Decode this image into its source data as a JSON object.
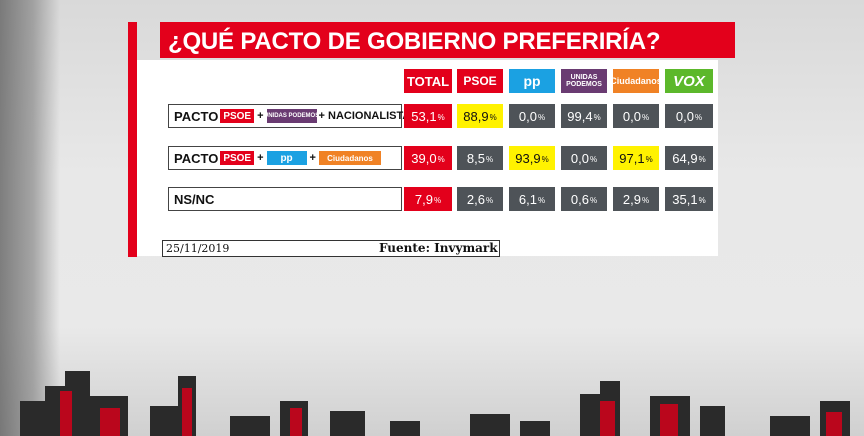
{
  "title": "¿QUÉ PACTO DE GOBIERNO PREFERIRÍA?",
  "headers": [
    "TOTAL",
    "PSOE",
    "pp",
    "UNIDAS PODEMOS",
    "Ciudadanos",
    "VOX"
  ],
  "rows": [
    {
      "label_parts": [
        "PACTO",
        "PSOE",
        "+",
        "UNIDAS PODEMOS",
        "+ NACIONALISTAS"
      ],
      "values": [
        "53,1",
        "88,9",
        "0,0",
        "99,4",
        "0,0",
        "0,0"
      ],
      "highlight": [
        false,
        true,
        false,
        false,
        false,
        false
      ]
    },
    {
      "label_parts": [
        "PACTO",
        "PSOE",
        "+",
        "pp",
        "+",
        "Ciudadanos"
      ],
      "values": [
        "39,0",
        "8,5",
        "93,9",
        "0,0",
        "97,1",
        "64,9"
      ],
      "highlight": [
        false,
        false,
        true,
        false,
        true,
        false
      ]
    },
    {
      "label_parts": [
        "NS/NC"
      ],
      "values": [
        "7,9",
        "2,6",
        "6,1",
        "0,6",
        "2,9",
        "35,1"
      ],
      "highlight": [
        false,
        false,
        false,
        false,
        false,
        false
      ]
    }
  ],
  "percent_sign": "%",
  "date": "25/11/2019",
  "source": "Fuente: Invymark",
  "colors": {
    "red": "#e3001b",
    "pp": "#1ba1e2",
    "podemos": "#6a3b72",
    "ciudadanos": "#f08225",
    "vox": "#5cb82b",
    "gray_cell": "#4e5358",
    "highlight": "#fff200"
  },
  "chart_data": {
    "type": "table",
    "title": "¿QUÉ PACTO DE GOBIERNO PREFERIRÍA?",
    "columns": [
      "TOTAL",
      "PSOE",
      "pp",
      "UNIDAS PODEMOS",
      "Ciudadanos",
      "VOX"
    ],
    "rows": [
      "PACTO PSOE + UNIDAS PODEMOS + NACIONALISTAS",
      "PACTO PSOE + pp + Ciudadanos",
      "NS/NC"
    ],
    "values": [
      [
        53.1,
        88.9,
        0.0,
        99.4,
        0.0,
        0.0
      ],
      [
        39.0,
        8.5,
        93.9,
        0.0,
        97.1,
        64.9
      ],
      [
        7.9,
        2.6,
        6.1,
        0.6,
        2.9,
        35.1
      ]
    ],
    "unit": "%"
  }
}
